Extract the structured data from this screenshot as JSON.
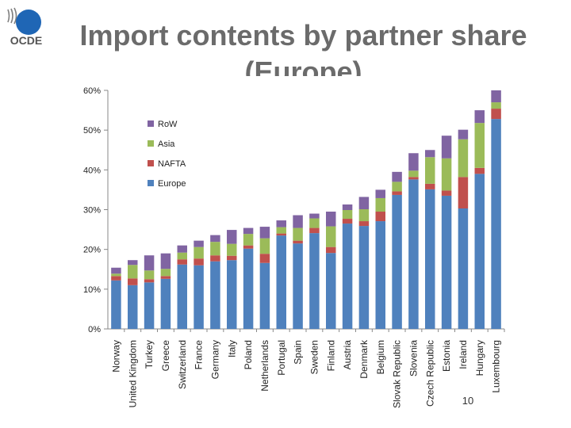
{
  "header": {
    "logo_text": "OCDE",
    "title": "Import contents by partner share (Europe)"
  },
  "page_number": "10",
  "chart_data": {
    "type": "bar",
    "stacked": true,
    "title": "",
    "xlabel": "",
    "ylabel": "",
    "ylim": [
      0,
      60
    ],
    "y_ticks": [
      "0%",
      "10%",
      "20%",
      "30%",
      "40%",
      "50%",
      "60%"
    ],
    "y_unit": "%",
    "grid": false,
    "legend_position": "top-left",
    "categories": [
      "Norway",
      "United Kingdom",
      "Turkey",
      "Greece",
      "Switzerland",
      "France",
      "Germany",
      "Italy",
      "Poland",
      "Netherlands",
      "Portugal",
      "Spain",
      "Sweden",
      "Finland",
      "Austria",
      "Denmark",
      "Belgium",
      "Slovak Republic",
      "Slovenia",
      "Czech Republic",
      "Estonia",
      "Ireland",
      "Hungary",
      "Luxembourg"
    ],
    "series": [
      {
        "name": "Europe",
        "color": "#4f81bd",
        "values": [
          12.2,
          11,
          11.7,
          12.6,
          16.2,
          16,
          17,
          17.3,
          20.2,
          16.6,
          23.5,
          21.5,
          24.1,
          19.1,
          26.5,
          25.9,
          27.1,
          33.7,
          37.6,
          35.1,
          33.5,
          30.3,
          39,
          52.8
        ]
      },
      {
        "name": "NAFTA",
        "color": "#c0504d",
        "values": [
          1.1,
          1.7,
          0.8,
          0.7,
          1.3,
          1.7,
          1.5,
          1.1,
          0.8,
          2.3,
          0.5,
          0.7,
          1.3,
          1.5,
          1.2,
          1.2,
          2.4,
          0.9,
          0.6,
          1.4,
          1.3,
          7.9,
          1.5,
          2.6
        ]
      },
      {
        "name": "Asia",
        "color": "#9bbb59",
        "values": [
          0.6,
          3.4,
          2.2,
          1.8,
          1.7,
          2.9,
          3.4,
          3,
          2.9,
          3.9,
          1.6,
          3.2,
          2.4,
          5.2,
          2.2,
          3,
          3.4,
          2.4,
          1.6,
          6.7,
          8.1,
          9.5,
          11.3,
          1.6
        ]
      },
      {
        "name": "RoW",
        "color": "#8064a2",
        "values": [
          1.5,
          1.2,
          3.8,
          3.9,
          1.8,
          1.6,
          1.7,
          3.5,
          1.5,
          2.9,
          1.7,
          3.2,
          1.2,
          3.7,
          1.4,
          3.1,
          2.1,
          2.5,
          4.4,
          1.8,
          5.7,
          2.4,
          3.2,
          3
        ]
      }
    ]
  }
}
